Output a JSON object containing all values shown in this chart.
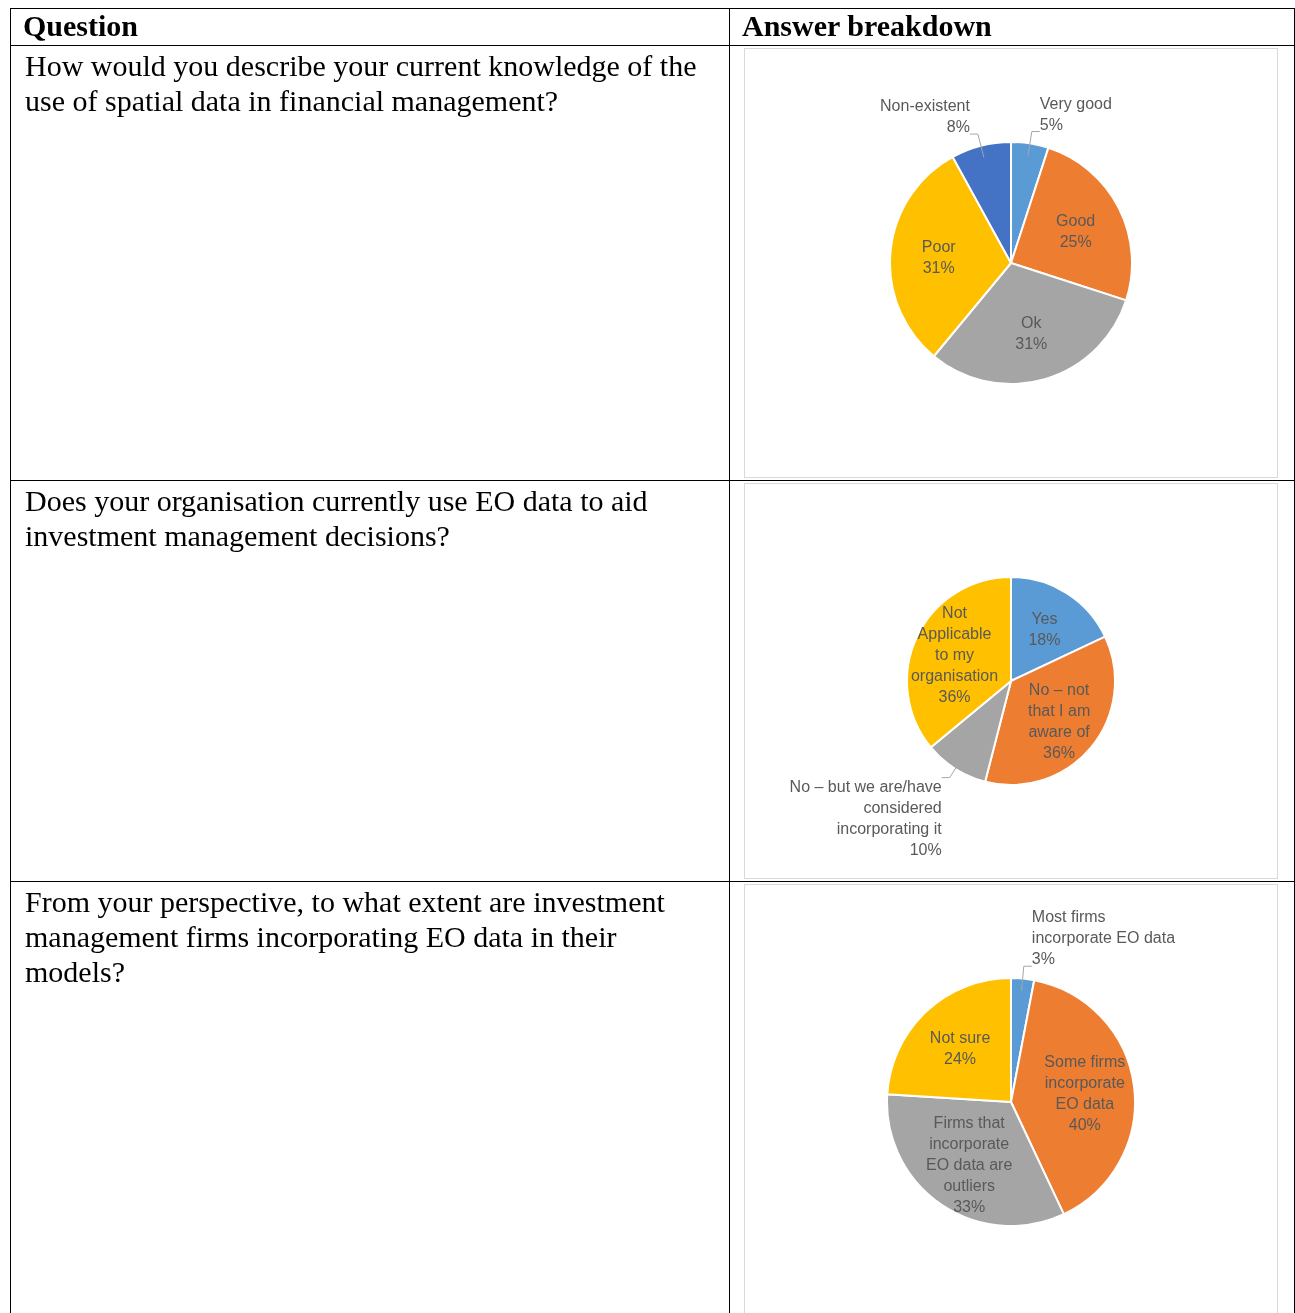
{
  "chart_data": [
    {
      "type": "pie",
      "title": "How would you describe your current knowledge of the use of spatial data in financial management?",
      "annotations": [
        "Question",
        "Answer breakdown"
      ],
      "categories": [
        "Very good",
        "Good",
        "Ok",
        "Poor",
        "Non-existent"
      ],
      "values": [
        5,
        25,
        31,
        31,
        8
      ],
      "value_labels": [
        "5%",
        "25%",
        "31%",
        "31%",
        "8%"
      ],
      "colors": [
        "#5b9bd5",
        "#ed7d31",
        "#a5a5a5",
        "#ffc000",
        "#4472c4"
      ]
    },
    {
      "type": "pie",
      "title": "Does your organisation currently use EO data to aid investment management decisions?",
      "categories": [
        "Yes",
        "No – not that I am aware of",
        "No – but we are/have considered incorporating it",
        "Not Applicable to my organisation"
      ],
      "values": [
        18,
        36,
        10,
        36
      ],
      "value_labels": [
        "18%",
        "36%",
        "10%",
        "36%"
      ],
      "colors": [
        "#5b9bd5",
        "#ed7d31",
        "#a5a5a5",
        "#ffc000"
      ]
    },
    {
      "type": "pie",
      "title": "From your perspective, to what extent are investment management firms incorporating EO data in their models?",
      "categories": [
        "Most firms incorporate EO data",
        "Some firms incorporate EO data",
        "Firms that incorporate EO data are outliers",
        "Not sure"
      ],
      "values": [
        3,
        40,
        33,
        24
      ],
      "value_labels": [
        "3%",
        "40%",
        "33%",
        "24%"
      ],
      "colors": [
        "#5b9bd5",
        "#ed7d31",
        "#a5a5a5",
        "#ffc000"
      ]
    }
  ]
}
